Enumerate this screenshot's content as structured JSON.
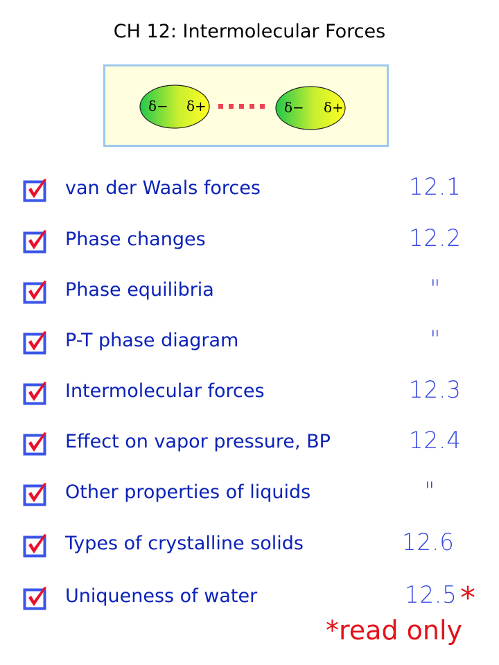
{
  "title": "CH 12: Intermolecular Forces",
  "diagram": {
    "molecules": [
      {
        "neg": "δ−",
        "pos": "δ+"
      },
      {
        "neg": "δ−",
        "pos": "δ+"
      }
    ]
  },
  "items": [
    {
      "label": "van der Waals forces",
      "section": "12.1",
      "checked": true
    },
    {
      "label": "Phase changes",
      "section": "12.2",
      "checked": true
    },
    {
      "label": "Phase equilibria",
      "section": "\"",
      "checked": true
    },
    {
      "label": "P-T phase diagram",
      "section": "\"",
      "checked": true
    },
    {
      "label": "Intermolecular forces",
      "section": "12.3",
      "checked": true
    },
    {
      "label": "Effect on vapor pressure, BP",
      "section": "12.4",
      "checked": true
    },
    {
      "label": "Other properties of liquids",
      "section": "\"",
      "checked": true
    },
    {
      "label": "Types of crystalline solids",
      "section": "12.6",
      "checked": true
    },
    {
      "label": "Uniqueness of water",
      "section": "12.5",
      "checked": true
    }
  ],
  "annotation": {
    "star": "*",
    "note": "*read only"
  },
  "colors": {
    "text": "#0b22b8",
    "handwriting_blue": "#3747e0",
    "handwriting_red": "#e3121a",
    "checkbox": "#3a55e8",
    "check": "#e8102a"
  }
}
